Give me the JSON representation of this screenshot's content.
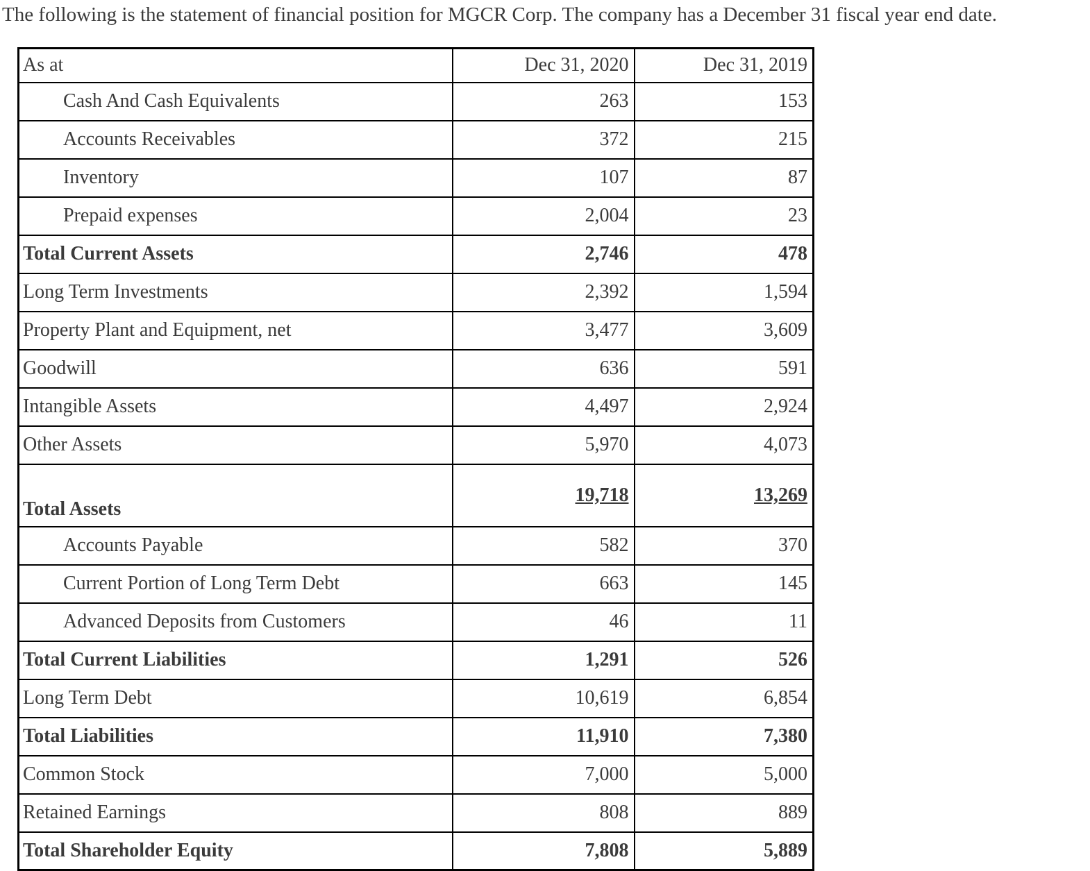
{
  "intro": "The following is the statement of financial position for MGCR Corp. The company has a December 31 fiscal year end date.",
  "table": {
    "header": {
      "as_at": "As at",
      "col_2020": "Dec 31, 2020",
      "col_2019": "Dec 31, 2019"
    },
    "rows": [
      {
        "label": "Cash And Cash Equivalents",
        "y2020": "263",
        "y2019": "153"
      },
      {
        "label": "Accounts Receivables",
        "y2020": "372",
        "y2019": "215"
      },
      {
        "label": "Inventory",
        "y2020": "107",
        "y2019": "87"
      },
      {
        "label": "Prepaid expenses",
        "y2020": "2,004",
        "y2019": "23"
      },
      {
        "label": "Total Current Assets",
        "y2020": "2,746",
        "y2019": "478"
      },
      {
        "label": "Long Term Investments",
        "y2020": "2,392",
        "y2019": "1,594"
      },
      {
        "label": "Property Plant and Equipment, net",
        "y2020": "3,477",
        "y2019": "3,609"
      },
      {
        "label": "Goodwill",
        "y2020": "636",
        "y2019": "591"
      },
      {
        "label": "Intangible Assets",
        "y2020": "4,497",
        "y2019": "2,924"
      },
      {
        "label": "Other Assets",
        "y2020": "5,970",
        "y2019": "4,073"
      },
      {
        "label": "Total Assets",
        "y2020": "19,718",
        "y2019": "13,269"
      },
      {
        "label": "Accounts Payable",
        "y2020": "582",
        "y2019": "370"
      },
      {
        "label": "Current Portion of Long Term Debt",
        "y2020": "663",
        "y2019": "145"
      },
      {
        "label": "Advanced Deposits from Customers",
        "y2020": "46",
        "y2019": "11"
      },
      {
        "label": "Total Current Liabilities",
        "y2020": "1,291",
        "y2019": "526"
      },
      {
        "label": "Long Term Debt",
        "y2020": "10,619",
        "y2019": "6,854"
      },
      {
        "label": "Total Liabilities",
        "y2020": "11,910",
        "y2019": "7,380"
      },
      {
        "label": "Common Stock",
        "y2020": "7,000",
        "y2019": "5,000"
      },
      {
        "label": "Retained Earnings",
        "y2020": "808",
        "y2019": "889"
      },
      {
        "label": "Total Shareholder Equity",
        "y2020": "7,808",
        "y2019": "5,889"
      }
    ]
  },
  "colors": {
    "text": "#3b3b3b",
    "border": "#000000",
    "background": "#ffffff"
  }
}
